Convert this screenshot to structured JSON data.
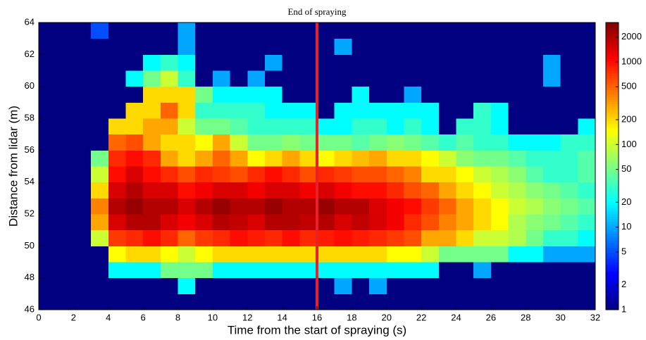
{
  "chart_data": {
    "type": "heatmap",
    "title": "End of spraying",
    "x_label": "Time from the start of spraying (s)",
    "y_label": "Distance from lidar (m)",
    "xbins": [
      0,
      1,
      2,
      3,
      4,
      5,
      6,
      7,
      8,
      9,
      10,
      11,
      12,
      13,
      14,
      15,
      16,
      17,
      18,
      19,
      20,
      21,
      22,
      23,
      24,
      25,
      26,
      27,
      28,
      29,
      30,
      31,
      32
    ],
    "ybins": [
      46,
      47,
      48,
      49,
      50,
      51,
      52,
      53,
      54,
      55,
      56,
      57,
      58,
      59,
      60,
      61,
      62,
      63,
      64
    ],
    "xlim": [
      0,
      32
    ],
    "ylim": [
      46,
      64
    ],
    "xticks": [
      0,
      2,
      4,
      6,
      8,
      10,
      12,
      14,
      16,
      18,
      20,
      22,
      24,
      26,
      28,
      30,
      32
    ],
    "yticks": [
      46,
      48,
      50,
      52,
      54,
      56,
      58,
      60,
      62,
      64
    ],
    "colormap": "jet",
    "color_scale": "log",
    "clim": [
      1,
      3000
    ],
    "cticks": [
      1,
      2,
      5,
      10,
      20,
      50,
      100,
      200,
      500,
      1000,
      2000
    ],
    "annotation": {
      "text": "End of spraying",
      "x": 16,
      "color": "#e8202a"
    },
    "values": [
      [
        1,
        1,
        1,
        1,
        1,
        1,
        1,
        1,
        1,
        1,
        1,
        1,
        1,
        1,
        1,
        1,
        1,
        1,
        1,
        1,
        1,
        1,
        1,
        1,
        1,
        1,
        1,
        1,
        1,
        1,
        1,
        1
      ],
      [
        1,
        1,
        1,
        1,
        1,
        1,
        1,
        1,
        20,
        1,
        1,
        1,
        1,
        1,
        1,
        1,
        1,
        10,
        1,
        10,
        1,
        1,
        1,
        1,
        1,
        1,
        1,
        1,
        1,
        1,
        1,
        1
      ],
      [
        1,
        1,
        1,
        1,
        20,
        20,
        20,
        50,
        50,
        50,
        20,
        20,
        20,
        20,
        20,
        20,
        20,
        20,
        20,
        20,
        20,
        20,
        20,
        1,
        1,
        10,
        1,
        1,
        1,
        1,
        1,
        1
      ],
      [
        1,
        1,
        1,
        1,
        150,
        200,
        200,
        150,
        100,
        150,
        200,
        200,
        200,
        200,
        200,
        200,
        200,
        200,
        200,
        200,
        150,
        150,
        100,
        50,
        50,
        50,
        50,
        20,
        20,
        10,
        10,
        10
      ],
      [
        1,
        1,
        1,
        100,
        700,
        800,
        1000,
        800,
        500,
        700,
        800,
        1000,
        900,
        800,
        1000,
        800,
        900,
        1000,
        900,
        800,
        700,
        600,
        300,
        300,
        200,
        100,
        100,
        80,
        50,
        30,
        30,
        20
      ],
      [
        1,
        1,
        1,
        300,
        1500,
        2000,
        2000,
        1500,
        1200,
        1500,
        2000,
        1800,
        1500,
        2000,
        2000,
        1800,
        2000,
        1500,
        1800,
        1500,
        1200,
        800,
        600,
        400,
        300,
        200,
        150,
        80,
        60,
        50,
        40,
        30
      ],
      [
        1,
        1,
        1,
        400,
        2000,
        2500,
        2000,
        2000,
        1500,
        2000,
        2500,
        2000,
        2000,
        2500,
        2000,
        2000,
        2500,
        2000,
        2000,
        1500,
        1200,
        1000,
        700,
        500,
        300,
        200,
        150,
        100,
        80,
        60,
        50,
        40
      ],
      [
        1,
        1,
        1,
        200,
        1500,
        2000,
        1500,
        1500,
        1000,
        1200,
        1500,
        1500,
        1200,
        1500,
        1500,
        1200,
        1500,
        1200,
        1000,
        1000,
        800,
        600,
        500,
        300,
        200,
        150,
        100,
        80,
        60,
        50,
        40,
        30
      ],
      [
        1,
        1,
        1,
        100,
        1000,
        1500,
        1000,
        800,
        600,
        800,
        700,
        600,
        800,
        1000,
        800,
        600,
        800,
        700,
        600,
        600,
        500,
        400,
        200,
        200,
        150,
        100,
        80,
        60,
        40,
        30,
        30,
        40
      ],
      [
        1,
        1,
        1,
        50,
        800,
        1000,
        800,
        300,
        200,
        300,
        500,
        300,
        150,
        200,
        300,
        200,
        150,
        200,
        250,
        300,
        200,
        200,
        150,
        100,
        60,
        50,
        50,
        40,
        30,
        30,
        30,
        40
      ],
      [
        1,
        1,
        1,
        1,
        500,
        600,
        300,
        200,
        200,
        150,
        300,
        100,
        50,
        50,
        60,
        50,
        50,
        50,
        40,
        50,
        60,
        50,
        40,
        30,
        40,
        30,
        30,
        20,
        20,
        20,
        30,
        30
      ],
      [
        1,
        1,
        1,
        1,
        200,
        200,
        300,
        300,
        100,
        50,
        50,
        40,
        30,
        30,
        30,
        30,
        20,
        20,
        30,
        30,
        20,
        30,
        20,
        1,
        30,
        30,
        20,
        1,
        1,
        1,
        1,
        20
      ],
      [
        1,
        1,
        1,
        1,
        1,
        200,
        200,
        500,
        200,
        30,
        30,
        30,
        30,
        20,
        20,
        20,
        1,
        20,
        20,
        20,
        20,
        20,
        20,
        1,
        1,
        30,
        20,
        1,
        1,
        1,
        1,
        1
      ],
      [
        1,
        1,
        1,
        1,
        1,
        1,
        200,
        200,
        200,
        50,
        20,
        20,
        20,
        20,
        1,
        1,
        1,
        1,
        20,
        1,
        1,
        10,
        1,
        1,
        1,
        1,
        1,
        1,
        1,
        1,
        1,
        1
      ],
      [
        1,
        1,
        1,
        1,
        1,
        20,
        50,
        100,
        30,
        1,
        10,
        1,
        10,
        1,
        1,
        1,
        1,
        1,
        1,
        1,
        1,
        1,
        1,
        1,
        1,
        1,
        1,
        1,
        1,
        10,
        1,
        1
      ],
      [
        1,
        1,
        1,
        1,
        1,
        1,
        20,
        30,
        20,
        1,
        1,
        1,
        1,
        10,
        1,
        1,
        1,
        1,
        1,
        1,
        1,
        1,
        1,
        1,
        1,
        1,
        1,
        1,
        1,
        10,
        1,
        1
      ],
      [
        1,
        1,
        1,
        1,
        1,
        1,
        1,
        1,
        10,
        1,
        1,
        1,
        1,
        1,
        1,
        1,
        1,
        10,
        1,
        1,
        1,
        1,
        1,
        1,
        1,
        1,
        1,
        1,
        1,
        1,
        1,
        1
      ],
      [
        1,
        1,
        1,
        5,
        1,
        1,
        1,
        1,
        10,
        1,
        1,
        1,
        1,
        1,
        1,
        1,
        1,
        1,
        1,
        1,
        1,
        1,
        1,
        1,
        1,
        1,
        1,
        1,
        1,
        1,
        1,
        1
      ]
    ]
  }
}
